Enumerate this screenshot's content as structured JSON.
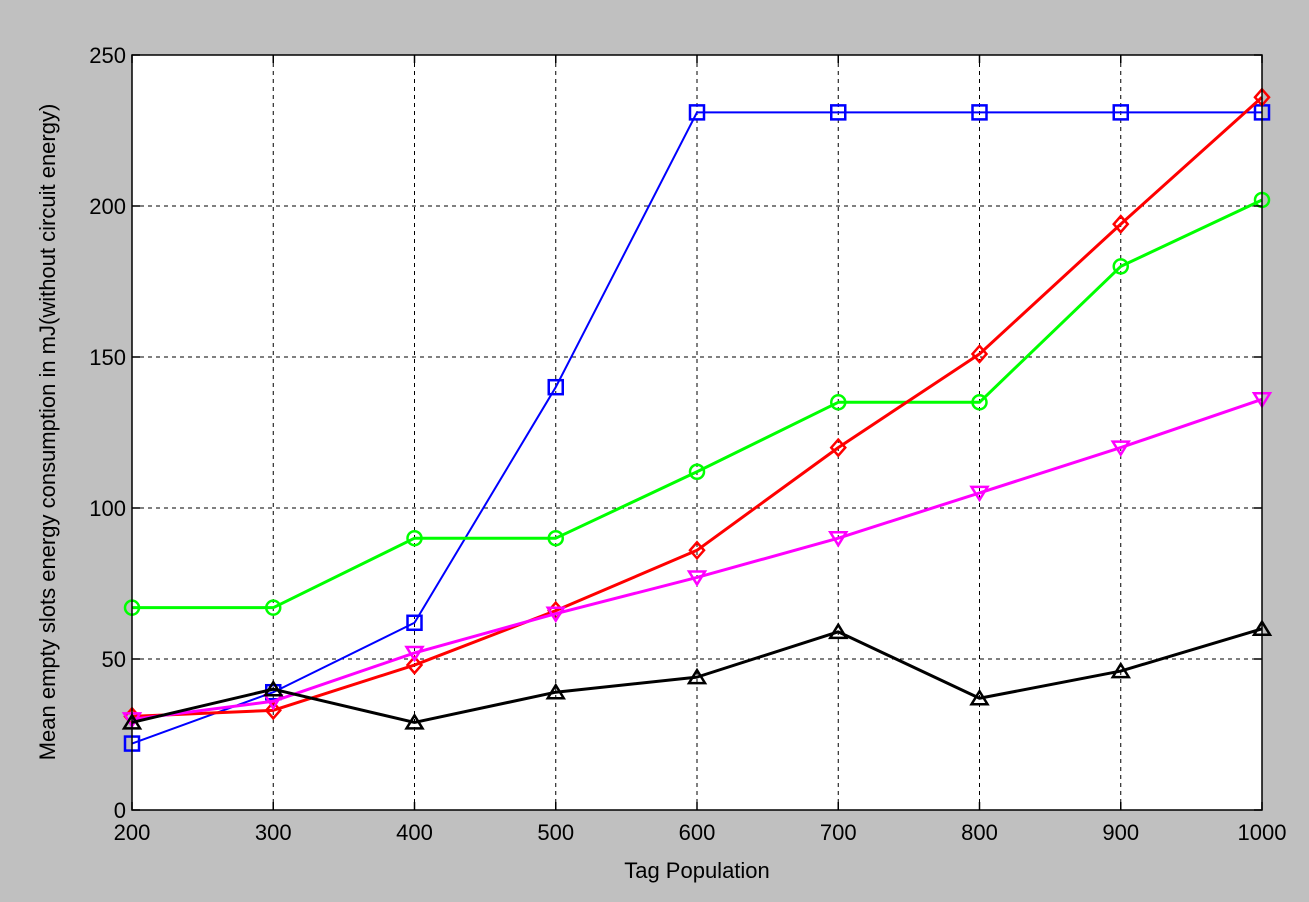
{
  "chart_data": {
    "type": "line",
    "title": "",
    "xlabel": "Tag Population",
    "ylabel": "Mean empty slots energy consumption in mJ(without circuit energy)",
    "x": [
      200,
      300,
      400,
      500,
      600,
      700,
      800,
      900,
      1000
    ],
    "xlim": [
      200,
      1000
    ],
    "ylim": [
      0,
      250
    ],
    "xticks": [
      "200",
      "300",
      "400",
      "500",
      "600",
      "700",
      "800",
      "900",
      "1000"
    ],
    "yticks": [
      "0",
      "50",
      "100",
      "150",
      "200",
      "250"
    ],
    "grid": true,
    "legend": "none",
    "series": [
      {
        "color": "#0000ff",
        "marker": "square",
        "values": [
          22,
          39,
          62,
          140,
          231,
          231,
          231,
          231,
          231
        ]
      },
      {
        "color": "#00ff00",
        "marker": "circle",
        "values": [
          67,
          67,
          90,
          90,
          112,
          135,
          135,
          180,
          202
        ]
      },
      {
        "color": "#ff0000",
        "marker": "diamond",
        "values": [
          31,
          33,
          48,
          66,
          86,
          120,
          151,
          194,
          236
        ]
      },
      {
        "color": "#ff00ff",
        "marker": "triangle-down",
        "values": [
          30,
          36,
          52,
          65,
          77,
          90,
          105,
          120,
          136
        ]
      },
      {
        "color": "#000000",
        "marker": "triangle-up",
        "values": [
          29,
          40,
          29,
          39,
          44,
          59,
          37,
          46,
          60
        ]
      }
    ]
  }
}
